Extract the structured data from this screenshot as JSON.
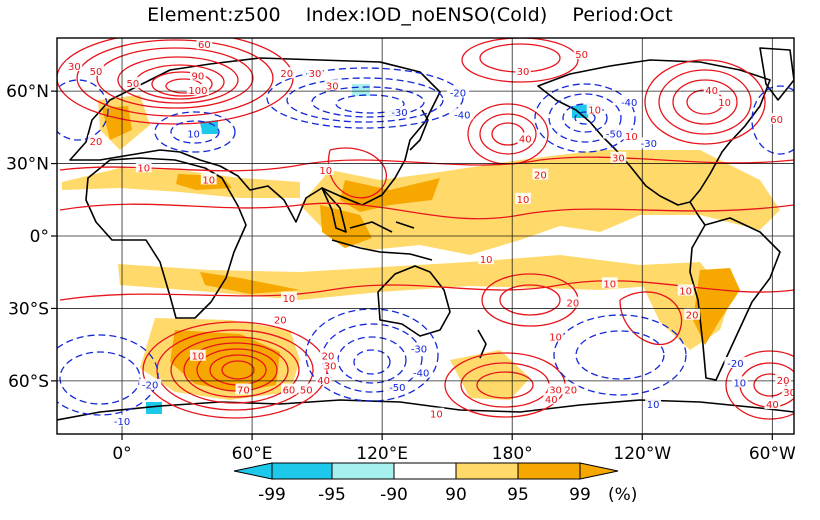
{
  "header": {
    "title": "Element:z500    Index:IOD_noENSO(Cold)    Period:Oct"
  },
  "map": {
    "projection": "equirectangular",
    "lon_range": [
      -30,
      310
    ],
    "lat_range": [
      -82,
      82
    ],
    "x_ticks": [
      {
        "lon": 0,
        "label": "0°"
      },
      {
        "lon": 60,
        "label": "60°E"
      },
      {
        "lon": 120,
        "label": "120°E"
      },
      {
        "lon": 180,
        "label": "180°"
      },
      {
        "lon": 240,
        "label": "120°W"
      },
      {
        "lon": 300,
        "label": "60°W"
      }
    ],
    "y_ticks": [
      {
        "lat": 60,
        "label": "60°N"
      },
      {
        "lat": 30,
        "label": "30°N"
      },
      {
        "lat": 0,
        "label": "0°"
      },
      {
        "lat": -30,
        "label": "30°S"
      },
      {
        "lat": -60,
        "label": "60°S"
      }
    ],
    "grid": true
  },
  "colors": {
    "positive_contour": "#e8141c",
    "negative_contour": "#1428d8",
    "sig_pos_95": "#ffd96a",
    "sig_pos_99": "#f7a800",
    "sig_neg_95": "#a6f0f0",
    "sig_neg_99": "#1ec8ea",
    "coast": "#000000"
  },
  "contour_labels": [
    {
      "lon": 35,
      "lat": 66,
      "text": "90",
      "sign": "pos"
    },
    {
      "lon": 35,
      "lat": 60,
      "text": "100",
      "sign": "pos"
    },
    {
      "lon": 5,
      "lat": 63,
      "text": "50",
      "sign": "pos"
    },
    {
      "lon": -22,
      "lat": 70,
      "text": "30",
      "sign": "pos"
    },
    {
      "lon": -12,
      "lat": 68,
      "text": "50",
      "sign": "pos"
    },
    {
      "lon": -12,
      "lat": 39,
      "text": "20",
      "sign": "pos"
    },
    {
      "lon": 38,
      "lat": 79,
      "text": "60",
      "sign": "pos"
    },
    {
      "lon": 76,
      "lat": 67,
      "text": "20",
      "sign": "pos"
    },
    {
      "lon": 89,
      "lat": 67,
      "text": "30",
      "sign": "pos"
    },
    {
      "lon": 97,
      "lat": 62,
      "text": "30",
      "sign": "pos"
    },
    {
      "lon": 155,
      "lat": 59,
      "text": "-20",
      "sign": "neg"
    },
    {
      "lon": 157,
      "lat": 50,
      "text": "-40",
      "sign": "neg"
    },
    {
      "lon": 128,
      "lat": 51,
      "text": "-30",
      "sign": "neg"
    },
    {
      "lon": 185,
      "lat": 68,
      "text": "30",
      "sign": "pos"
    },
    {
      "lon": 212,
      "lat": 75,
      "text": "50",
      "sign": "pos"
    },
    {
      "lon": 186,
      "lat": 40,
      "text": "40",
      "sign": "pos"
    },
    {
      "lon": 193,
      "lat": 25,
      "text": "20",
      "sign": "pos"
    },
    {
      "lon": 218,
      "lat": 52,
      "text": "10",
      "sign": "pos"
    },
    {
      "lon": 227,
      "lat": 42,
      "text": "-50",
      "sign": "neg"
    },
    {
      "lon": 234,
      "lat": 55,
      "text": "-40",
      "sign": "neg"
    },
    {
      "lon": 229,
      "lat": 32,
      "text": "30",
      "sign": "pos"
    },
    {
      "lon": 243,
      "lat": 38,
      "text": "-30",
      "sign": "neg"
    },
    {
      "lon": 235,
      "lat": 41,
      "text": "10",
      "sign": "pos"
    },
    {
      "lon": 302,
      "lat": 48,
      "text": "60",
      "sign": "pos"
    },
    {
      "lon": 272,
      "lat": 60,
      "text": "40",
      "sign": "pos"
    },
    {
      "lon": 315,
      "lat": 58,
      "text": "40",
      "sign": "pos"
    },
    {
      "lon": 320,
      "lat": 60,
      "text": "20",
      "sign": "pos"
    },
    {
      "lon": 278,
      "lat": 55,
      "text": "10",
      "sign": "pos"
    },
    {
      "lon": 33,
      "lat": 42,
      "text": "10",
      "sign": "neg"
    },
    {
      "lon": 10,
      "lat": 28,
      "text": "10",
      "sign": "pos"
    },
    {
      "lon": 40,
      "lat": 23,
      "text": "10",
      "sign": "pos"
    },
    {
      "lon": 94,
      "lat": 27,
      "text": "10",
      "sign": "pos"
    },
    {
      "lon": 185,
      "lat": 15,
      "text": "10",
      "sign": "pos"
    },
    {
      "lon": 77,
      "lat": -26,
      "text": "10",
      "sign": "pos"
    },
    {
      "lon": 168,
      "lat": -10,
      "text": "10",
      "sign": "pos"
    },
    {
      "lon": 200,
      "lat": -42,
      "text": "10",
      "sign": "pos"
    },
    {
      "lon": 208,
      "lat": -28,
      "text": "20",
      "sign": "pos"
    },
    {
      "lon": 225,
      "lat": -20,
      "text": "10",
      "sign": "pos"
    },
    {
      "lon": 260,
      "lat": -23,
      "text": "10",
      "sign": "pos"
    },
    {
      "lon": 263,
      "lat": -33,
      "text": "20",
      "sign": "pos"
    },
    {
      "lon": 73,
      "lat": -35,
      "text": "20",
      "sign": "pos"
    },
    {
      "lon": 35,
      "lat": -50,
      "text": "10",
      "sign": "pos"
    },
    {
      "lon": 56,
      "lat": -64,
      "text": "70",
      "sign": "pos"
    },
    {
      "lon": 77,
      "lat": -64,
      "text": "60",
      "sign": "pos"
    },
    {
      "lon": 85,
      "lat": -64,
      "text": "50",
      "sign": "pos"
    },
    {
      "lon": 93,
      "lat": -60,
      "text": "40",
      "sign": "pos"
    },
    {
      "lon": 96,
      "lat": -54,
      "text": "30",
      "sign": "pos"
    },
    {
      "lon": 95,
      "lat": -50,
      "text": "20",
      "sign": "pos"
    },
    {
      "lon": 13,
      "lat": -62,
      "text": "-20",
      "sign": "neg"
    },
    {
      "lon": 0,
      "lat": -77,
      "text": "-10",
      "sign": "neg"
    },
    {
      "lon": 137,
      "lat": -47,
      "text": "-30",
      "sign": "neg"
    },
    {
      "lon": 138,
      "lat": -57,
      "text": "-40",
      "sign": "neg"
    },
    {
      "lon": 127,
      "lat": -63,
      "text": "-50",
      "sign": "neg"
    },
    {
      "lon": 145,
      "lat": -74,
      "text": "10",
      "sign": "pos"
    },
    {
      "lon": 200,
      "lat": -64,
      "text": "30",
      "sign": "pos"
    },
    {
      "lon": 207,
      "lat": -64,
      "text": "20",
      "sign": "pos"
    },
    {
      "lon": 198,
      "lat": -68,
      "text": "40",
      "sign": "pos"
    },
    {
      "lon": 283,
      "lat": -53,
      "text": "-20",
      "sign": "neg"
    },
    {
      "lon": 245,
      "lat": -70,
      "text": "10",
      "sign": "neg"
    },
    {
      "lon": 285,
      "lat": -61,
      "text": "10",
      "sign": "neg"
    },
    {
      "lon": 300,
      "lat": -70,
      "text": "40",
      "sign": "pos"
    },
    {
      "lon": 305,
      "lat": -60,
      "text": "20",
      "sign": "pos"
    },
    {
      "lon": 308,
      "lat": -65,
      "text": "30",
      "sign": "pos"
    }
  ],
  "legend": {
    "labels": [
      "-99",
      "-95",
      "-90",
      "90",
      "95",
      "99"
    ],
    "unit": "(%)",
    "colors": [
      "#1ec8ea",
      "#1ec8ea",
      "#a6f0f0",
      "#ffffff",
      "#ffd96a",
      "#f7a800",
      "#f7a800"
    ]
  }
}
